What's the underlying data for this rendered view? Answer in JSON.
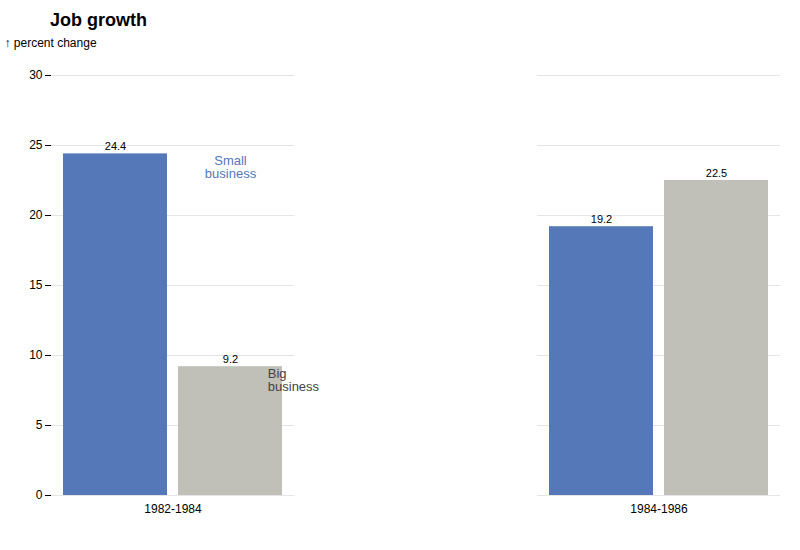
{
  "chart_data": {
    "type": "bar",
    "title": "Job growth",
    "ylabel": "percent change",
    "categories": [
      "1982-1984",
      "1984-1986"
    ],
    "series": [
      {
        "name": "Small\nbusiness",
        "color": "#5578b8",
        "values": [
          24.4,
          19.2
        ]
      },
      {
        "name": "Big\nbusiness",
        "color": "#c0c0b8",
        "values": [
          9.2,
          22.5
        ]
      }
    ],
    "ylim": [
      0,
      30
    ],
    "yticks": [
      0,
      5,
      10,
      15,
      20,
      25,
      30
    ],
    "grid": true,
    "data_labels": true
  }
}
